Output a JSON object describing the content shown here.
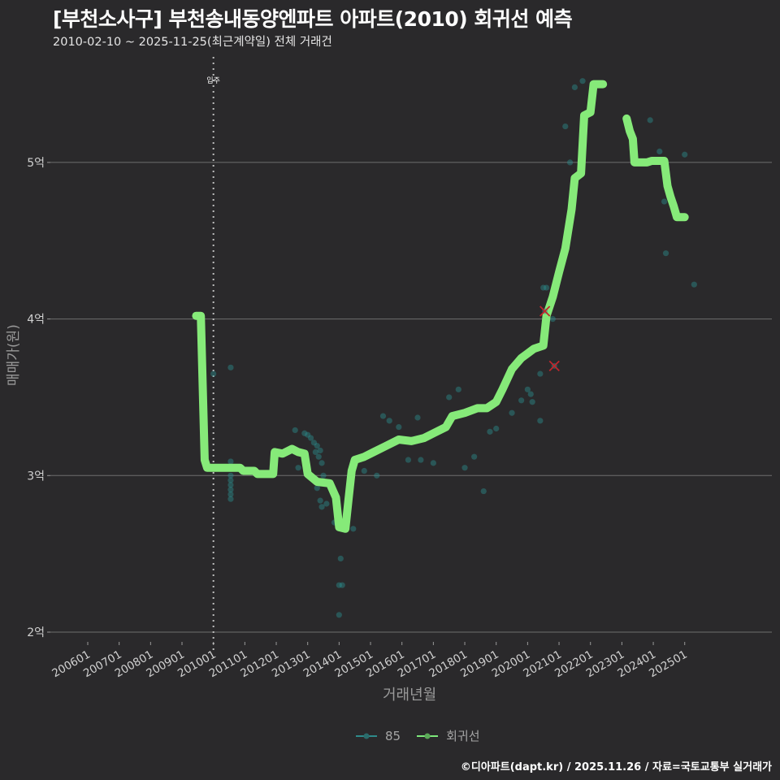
{
  "header": {
    "title": "[부천소사구] 부천송내동양엔파트 아파트(2010) 회귀선 예측",
    "subtitle": "2010-02-10 ~ 2025-11-25(최근계약일) 전체 거래건"
  },
  "axes": {
    "ylabel": "매매가(원)",
    "xlabel": "거래년월",
    "move_in_label": "입주"
  },
  "legend": {
    "items": [
      {
        "label": "85",
        "color": "#2e8b8b"
      },
      {
        "label": "회귀선",
        "color": "#7de87a"
      }
    ]
  },
  "footer": {
    "credit": "©디아파트(dapt.kr) / 2025.11.26 / 자료=국토교통부 실거래가"
  },
  "colors": {
    "background": "#2a292b",
    "grid": "#6e6e6e",
    "regression": "#86ea79",
    "scatter": "#2a8f8f",
    "outlier": "#c0262c"
  },
  "chart_data": {
    "type": "scatter",
    "title": "[부천소사구] 부천송내동양엔파트 아파트(2010) 회귀선 예측",
    "subtitle": "2010-02-10 ~ 2025-11-25(최근계약일) 전체 거래건",
    "xlabel": "거래년월",
    "ylabel": "매매가(원)",
    "x_ticks": [
      "200601",
      "200701",
      "200801",
      "200901",
      "201001",
      "201101",
      "201201",
      "201301",
      "201401",
      "201501",
      "201601",
      "201701",
      "201801",
      "201901",
      "202001",
      "202101",
      "202201",
      "202301",
      "202401",
      "202501"
    ],
    "y_ticks": [
      "2억",
      "3억",
      "4억",
      "5억"
    ],
    "ylim": [
      2.0,
      5.55
    ],
    "xlim": [
      2005.5,
      2026.3
    ],
    "grid": true,
    "legend_position": "bottom",
    "vline": {
      "x": 2010.0,
      "label": "입주",
      "style": "dotted"
    },
    "series": [
      {
        "name": "회귀선",
        "type": "line",
        "points": [
          [
            2009.45,
            4.02
          ],
          [
            2009.6,
            4.02
          ],
          [
            2009.72,
            3.1
          ],
          [
            2009.8,
            3.05
          ],
          [
            2010.5,
            3.05
          ],
          [
            2010.85,
            3.05
          ],
          [
            2010.95,
            3.03
          ],
          [
            2011.3,
            3.03
          ],
          [
            2011.4,
            3.01
          ],
          [
            2011.9,
            3.01
          ],
          [
            2011.95,
            3.15
          ],
          [
            2012.2,
            3.14
          ],
          [
            2012.5,
            3.17
          ],
          [
            2012.7,
            3.15
          ],
          [
            2012.9,
            3.14
          ],
          [
            2013.0,
            3.01
          ],
          [
            2013.3,
            2.96
          ],
          [
            2013.7,
            2.95
          ],
          [
            2013.9,
            2.86
          ],
          [
            2014.0,
            2.67
          ],
          [
            2014.2,
            2.66
          ],
          [
            2014.3,
            2.85
          ],
          [
            2014.4,
            3.03
          ],
          [
            2014.5,
            3.1
          ],
          [
            2014.8,
            3.12
          ],
          [
            2015.1,
            3.15
          ],
          [
            2015.5,
            3.19
          ],
          [
            2015.9,
            3.23
          ],
          [
            2016.3,
            3.22
          ],
          [
            2016.7,
            3.24
          ],
          [
            2017.0,
            3.27
          ],
          [
            2017.4,
            3.31
          ],
          [
            2017.6,
            3.38
          ],
          [
            2018.0,
            3.4
          ],
          [
            2018.4,
            3.43
          ],
          [
            2018.7,
            3.43
          ],
          [
            2019.0,
            3.47
          ],
          [
            2019.2,
            3.55
          ],
          [
            2019.5,
            3.68
          ],
          [
            2019.8,
            3.75
          ],
          [
            2020.0,
            3.78
          ],
          [
            2020.2,
            3.81
          ],
          [
            2020.5,
            3.83
          ],
          [
            2020.6,
            4.02
          ],
          [
            2020.8,
            4.14
          ],
          [
            2021.0,
            4.3
          ],
          [
            2021.2,
            4.45
          ],
          [
            2021.4,
            4.7
          ],
          [
            2021.5,
            4.9
          ],
          [
            2021.7,
            4.93
          ],
          [
            2021.8,
            5.3
          ],
          [
            2022.0,
            5.32
          ],
          [
            2022.1,
            5.5
          ],
          [
            2022.4,
            5.5
          ]
        ]
      },
      {
        "name": "회귀선 (cont.)",
        "type": "line",
        "points": [
          [
            2023.15,
            5.28
          ],
          [
            2023.25,
            5.2
          ],
          [
            2023.35,
            5.15
          ],
          [
            2023.4,
            5.0
          ],
          [
            2023.8,
            5.0
          ],
          [
            2023.95,
            5.01
          ],
          [
            2024.35,
            5.01
          ],
          [
            2024.45,
            4.85
          ],
          [
            2024.55,
            4.78
          ],
          [
            2024.65,
            4.72
          ],
          [
            2024.75,
            4.65
          ],
          [
            2025.0,
            4.65
          ]
        ]
      },
      {
        "name": "85",
        "type": "scatter",
        "points": [
          [
            2010.0,
            3.65
          ],
          [
            2010.55,
            3.69
          ],
          [
            2010.55,
            3.09
          ],
          [
            2010.55,
            3.05
          ],
          [
            2010.55,
            3.0
          ],
          [
            2010.55,
            2.97
          ],
          [
            2010.55,
            2.94
          ],
          [
            2010.55,
            2.91
          ],
          [
            2010.55,
            2.88
          ],
          [
            2010.55,
            2.85
          ],
          [
            2012.6,
            3.29
          ],
          [
            2012.9,
            3.27
          ],
          [
            2013.0,
            3.26
          ],
          [
            2013.1,
            3.24
          ],
          [
            2013.2,
            3.21
          ],
          [
            2013.3,
            3.19
          ],
          [
            2013.4,
            3.16
          ],
          [
            2013.25,
            3.15
          ],
          [
            2013.35,
            3.12
          ],
          [
            2013.45,
            3.08
          ],
          [
            2013.5,
            3.0
          ],
          [
            2013.3,
            2.92
          ],
          [
            2013.4,
            2.84
          ],
          [
            2013.45,
            2.8
          ],
          [
            2012.7,
            3.05
          ],
          [
            2013.6,
            2.82
          ],
          [
            2013.85,
            2.7
          ],
          [
            2014.05,
            2.47
          ],
          [
            2014.0,
            2.3
          ],
          [
            2014.1,
            2.3
          ],
          [
            2014.0,
            2.11
          ],
          [
            2014.45,
            2.66
          ],
          [
            2014.6,
            3.1
          ],
          [
            2014.8,
            3.03
          ],
          [
            2015.2,
            3.0
          ],
          [
            2015.4,
            3.38
          ],
          [
            2015.6,
            3.35
          ],
          [
            2015.9,
            3.31
          ],
          [
            2016.2,
            3.1
          ],
          [
            2016.5,
            3.37
          ],
          [
            2016.6,
            3.1
          ],
          [
            2017.0,
            3.08
          ],
          [
            2017.5,
            3.5
          ],
          [
            2017.8,
            3.55
          ],
          [
            2018.0,
            3.05
          ],
          [
            2018.6,
            2.9
          ],
          [
            2018.8,
            3.28
          ],
          [
            2019.0,
            3.3
          ],
          [
            2018.3,
            3.12
          ],
          [
            2019.5,
            3.4
          ],
          [
            2019.8,
            3.48
          ],
          [
            2020.0,
            3.55
          ],
          [
            2020.1,
            3.52
          ],
          [
            2020.15,
            3.47
          ],
          [
            2020.4,
            3.65
          ],
          [
            2020.5,
            4.2
          ],
          [
            2020.6,
            4.2
          ],
          [
            2021.2,
            5.23
          ],
          [
            2021.35,
            5.0
          ],
          [
            2021.5,
            5.48
          ],
          [
            2021.75,
            5.52
          ],
          [
            2023.9,
            5.27
          ],
          [
            2024.2,
            5.07
          ],
          [
            2024.35,
            4.75
          ],
          [
            2024.4,
            4.42
          ],
          [
            2025.0,
            5.05
          ],
          [
            2025.3,
            4.22
          ],
          [
            2020.8,
            4.0
          ],
          [
            2020.4,
            3.35
          ],
          [
            2016.8,
            3.25
          ]
        ]
      },
      {
        "name": "outliers",
        "type": "scatter",
        "marker": "x",
        "points": [
          [
            2020.55,
            4.05
          ],
          [
            2020.85,
            3.7
          ]
        ]
      }
    ]
  }
}
